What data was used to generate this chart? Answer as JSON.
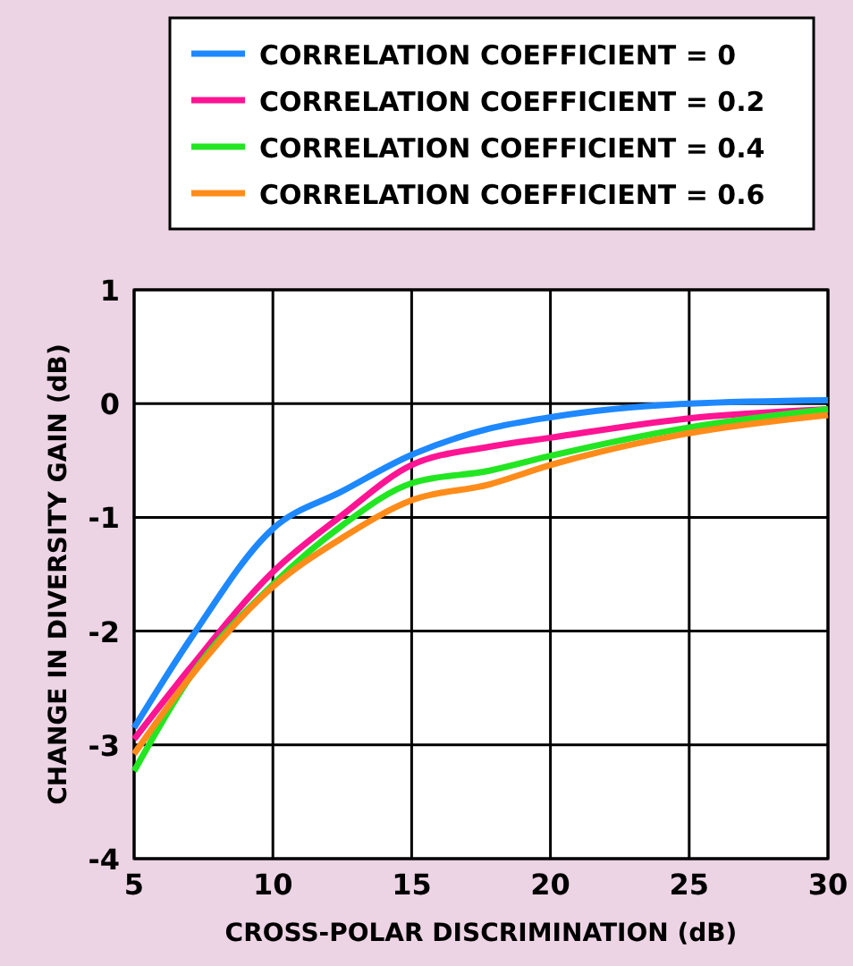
{
  "chart_data": {
    "type": "line",
    "xlabel": "CROSS-POLAR DISCRIMINATION (dB)",
    "ylabel": "CHANGE IN DIVERSITY GAIN (dB)",
    "xlim": [
      5,
      30
    ],
    "xticks": [
      5,
      10,
      15,
      20,
      25,
      30
    ],
    "ylim": [
      -4,
      1
    ],
    "yticks": [
      1,
      0,
      -1,
      -2,
      -3,
      -4
    ],
    "grid": true,
    "legend": "top",
    "line_style": "solid",
    "marker": "none",
    "x": [
      5,
      7,
      10,
      12.5,
      15,
      17.8,
      20,
      25,
      30
    ],
    "series": [
      {
        "name": "CORRELATION COEFFICIENT = 0",
        "color": "#1e88ff",
        "values": [
          -2.85,
          -2.08,
          -1.1,
          -0.77,
          -0.45,
          -0.22,
          -0.12,
          0,
          0.03
        ]
      },
      {
        "name": "CORRELATION COEFFICIENT = 0.2",
        "color": "#ff1493",
        "values": [
          -2.95,
          -2.33,
          -1.48,
          -0.98,
          -0.54,
          -0.38,
          -0.3,
          -0.13,
          -0.05
        ]
      },
      {
        "name": "CORRELATION COEFFICIENT = 0.4",
        "color": "#22e622",
        "values": [
          -3.23,
          -2.41,
          -1.59,
          -1.07,
          -0.7,
          -0.59,
          -0.46,
          -0.21,
          -0.05
        ]
      },
      {
        "name": "CORRELATION COEFFICIENT = 0.6",
        "color": "#ff8c1a",
        "values": [
          -3.08,
          -2.41,
          -1.61,
          -1.18,
          -0.85,
          -0.71,
          -0.54,
          -0.26,
          -0.1
        ]
      }
    ]
  }
}
